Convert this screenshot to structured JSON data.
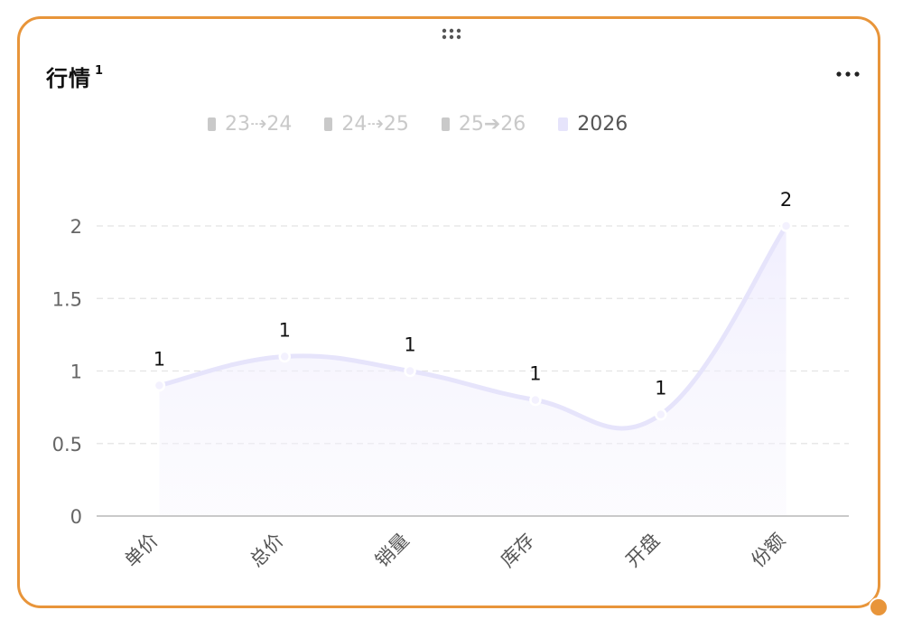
{
  "card": {
    "title": "行情",
    "superscript": "1"
  },
  "colors": {
    "card_border": "#e8953a",
    "series_line": "#e6e4fb",
    "legend_inactive": "#c9c9c9",
    "legend_active": "#e6e4fb"
  },
  "icons": {
    "drag": "drag-dots-icon",
    "more": "more-horizontal-icon"
  },
  "chart_data": {
    "type": "area",
    "smooth": true,
    "categories": [
      "单价",
      "总价",
      "销量",
      "库存",
      "开盘",
      "份额"
    ],
    "legend": [
      "23⇢24",
      "24⇢25",
      "25➔26",
      "2026"
    ],
    "legend_placement": "top-center",
    "legend_active": "2026",
    "series": [
      {
        "name": "2026",
        "values": [
          0.9,
          1.1,
          1.0,
          0.8,
          0.7,
          2.0
        ],
        "labels": [
          "1",
          "1",
          "1",
          "1",
          "1",
          "2"
        ]
      }
    ],
    "yticks": [
      "0",
      "0.5",
      "1",
      "1.5",
      "2"
    ],
    "ylim": [
      0,
      2
    ],
    "grid": true
  }
}
